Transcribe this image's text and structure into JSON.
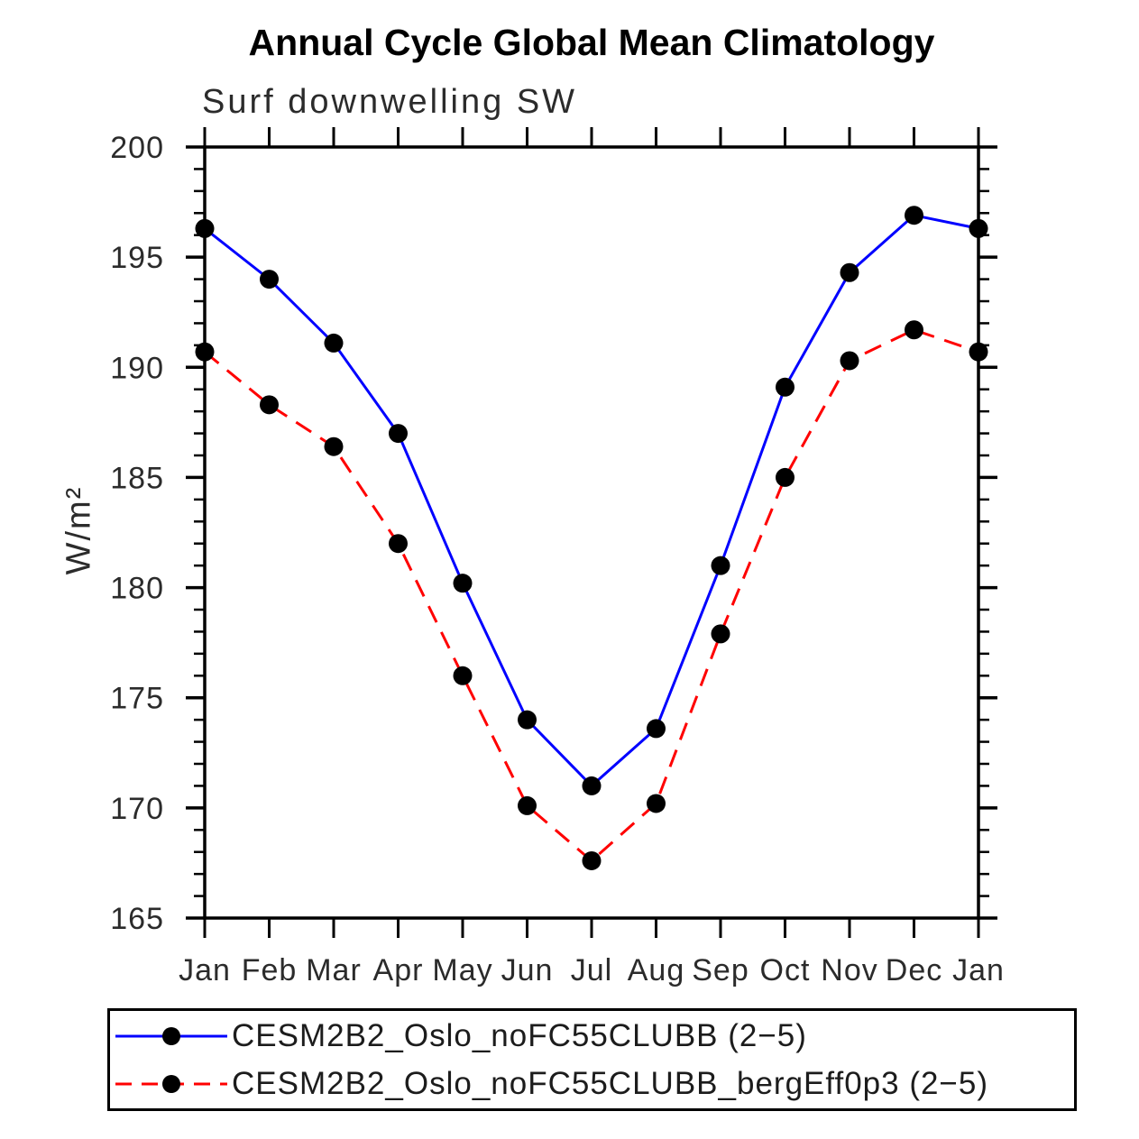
{
  "chart_data": {
    "type": "line",
    "title": "Annual Cycle Global Mean Climatology",
    "subtitle": "Surf downwelling SW",
    "ylabel": "W/m²",
    "xlabel": "",
    "x_categories": [
      "Jan",
      "Feb",
      "Mar",
      "Apr",
      "May",
      "Jun",
      "Jul",
      "Aug",
      "Sep",
      "Oct",
      "Nov",
      "Dec",
      "Jan"
    ],
    "ylim": [
      165,
      200
    ],
    "y_major_ticks": [
      165,
      170,
      175,
      180,
      185,
      190,
      195,
      200
    ],
    "y_minor_tick_step": 1,
    "grid": false,
    "legend_position": "bottom",
    "axis_color": "#000000",
    "marker_color": "#000000",
    "series": [
      {
        "name": "CESM2B2_Oslo_noFC55CLUBB (2−5)",
        "color": "#0000ff",
        "line_style": "solid",
        "marker": "filled-circle",
        "values": [
          196.3,
          194.0,
          191.1,
          187.0,
          180.2,
          174.0,
          171.0,
          173.6,
          181.0,
          189.1,
          194.3,
          196.9,
          196.3
        ]
      },
      {
        "name": "CESM2B2_Oslo_noFC55CLUBB_bergEff0p3 (2−5)",
        "color": "#ff0000",
        "line_style": "dashed",
        "marker": "filled-circle",
        "values": [
          190.7,
          188.3,
          186.4,
          182.0,
          176.0,
          170.1,
          167.6,
          170.2,
          177.9,
          185.0,
          190.3,
          191.7,
          190.7
        ]
      }
    ]
  }
}
